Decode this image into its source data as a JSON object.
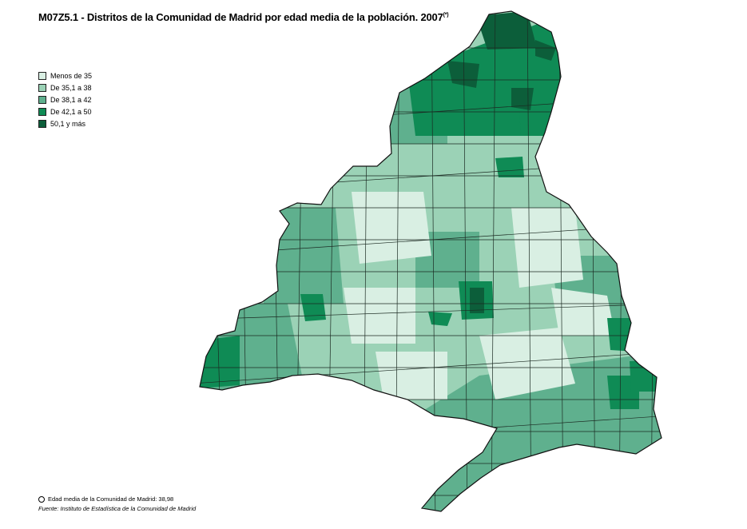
{
  "title": {
    "text": "M07Z5.1 - Distritos de la Comunidad de Madrid por edad media de la población. 2007",
    "superscript": "(*)"
  },
  "legend": [
    {
      "label": "Menos de 35",
      "color": "#d9efe3"
    },
    {
      "label": "De 35,1 a 38",
      "color": "#9bd2b6"
    },
    {
      "label": "De 38,1 a 42",
      "color": "#5fb08e"
    },
    {
      "label": "De 42,1 a 50",
      "color": "#0f8b55"
    },
    {
      "label": "50,1 y más",
      "color": "#0c5e3a"
    }
  ],
  "footnote": "Edad media de la Comunidad de Madrid: 38,98",
  "source": "Fuente: Instituto de Estadística de la Comunidad de Madrid"
}
